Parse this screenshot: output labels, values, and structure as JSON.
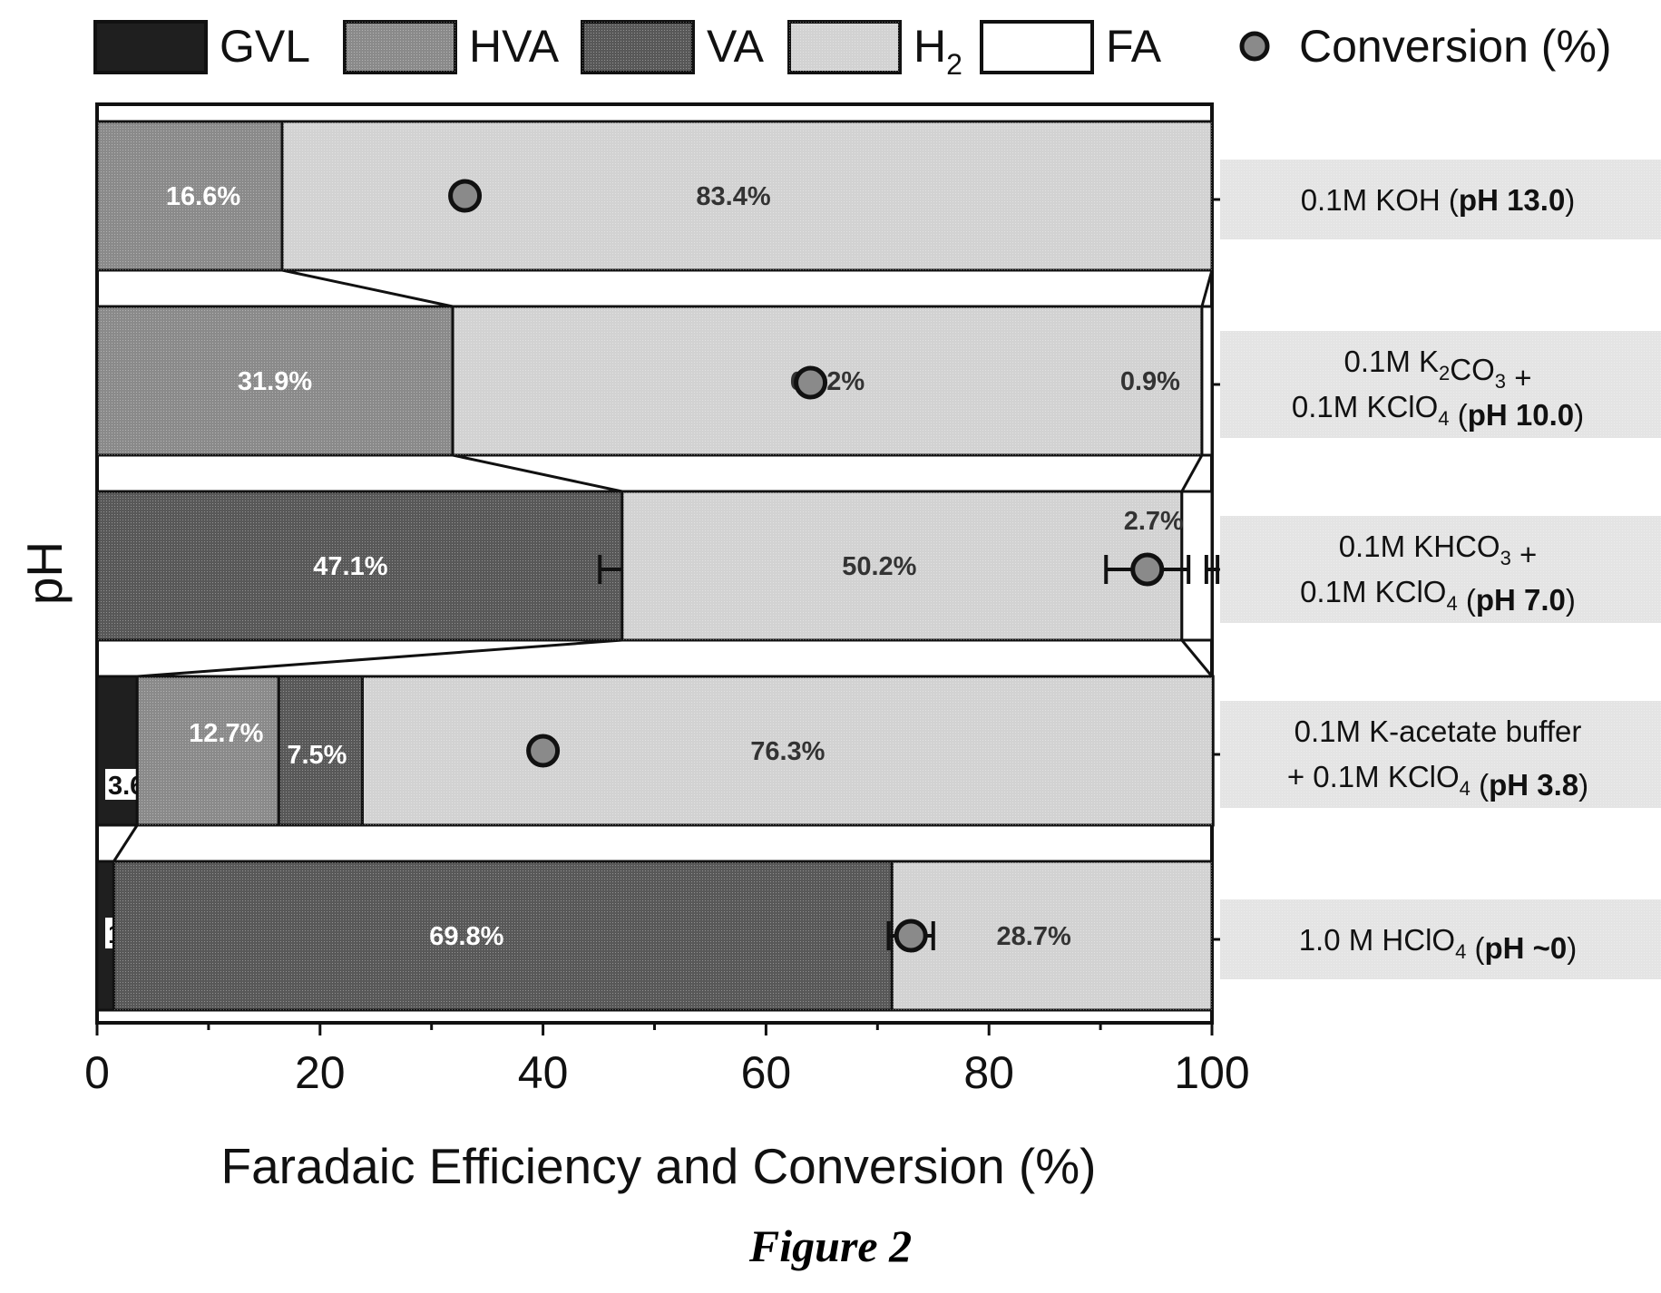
{
  "caption": "Figure 2",
  "chart_data": {
    "type": "bar",
    "orientation": "horizontal",
    "stacked": true,
    "title": "",
    "xlabel": "Faradaic Efficiency and Conversion (%)",
    "ylabel": "pH",
    "xlim": [
      0,
      100
    ],
    "xticks": [
      "0",
      "20",
      "40",
      "60",
      "80",
      "100"
    ],
    "legend_position": "top",
    "legend": [
      {
        "key": "GVL",
        "label": "GVL",
        "color": "#1f1f1f"
      },
      {
        "key": "HVA",
        "label": "HVA",
        "color": "#8a8a8a"
      },
      {
        "key": "VA",
        "label": "VA",
        "color": "#585858"
      },
      {
        "key": "H2",
        "label": "H",
        "sub": "2",
        "color": "#d2d2d2"
      },
      {
        "key": "FA",
        "label": "FA",
        "color": "#ffffff"
      },
      {
        "key": "conv",
        "label": "Conversion (%)",
        "color": "#8a8a8a",
        "marker": "circle"
      }
    ],
    "categories": [
      [
        {
          "t": "0.1M KOH ("
        },
        {
          "t": "pH 13.0",
          "b": true
        },
        {
          "t": ")"
        }
      ],
      [
        {
          "t": "0.1M K"
        },
        {
          "t": "2",
          "sub": true
        },
        {
          "t": "CO"
        },
        {
          "t": "3",
          "sub": true
        },
        {
          "t": " +"
        },
        {
          "br": true
        },
        {
          "t": "0.1M KClO"
        },
        {
          "t": "4",
          "sub": true
        },
        {
          "t": " ("
        },
        {
          "t": "pH 10.0",
          "b": true
        },
        {
          "t": ")"
        }
      ],
      [
        {
          "t": "0.1M KHCO"
        },
        {
          "t": "3",
          "sub": true
        },
        {
          "t": " +"
        },
        {
          "br": true
        },
        {
          "t": "0.1M KClO"
        },
        {
          "t": "4",
          "sub": true
        },
        {
          "t": " ("
        },
        {
          "t": "pH 7.0",
          "b": true
        },
        {
          "t": ")"
        }
      ],
      [
        {
          "t": "0.1M K-acetate buffer"
        },
        {
          "br": true
        },
        {
          "t": "+ 0.1M KClO"
        },
        {
          "t": "4",
          "sub": true
        },
        {
          "t": " ("
        },
        {
          "t": "pH 3.8",
          "b": true
        },
        {
          "t": ")"
        }
      ],
      [
        {
          "t": "1.0 M HClO"
        },
        {
          "t": "4",
          "sub": true
        },
        {
          "t": " ("
        },
        {
          "t": "pH ~0",
          "b": true
        },
        {
          "t": ")"
        }
      ]
    ],
    "bars": [
      {
        "segments": [
          {
            "key": "HVA",
            "value": 16.6,
            "label": "16.6%"
          },
          {
            "key": "H2",
            "value": 83.4,
            "label": "83.4%"
          }
        ],
        "conversion": 33.0
      },
      {
        "segments": [
          {
            "key": "HVA",
            "value": 31.9,
            "label": "31.9%"
          },
          {
            "key": "H2",
            "value": 67.2,
            "label": "67.2%"
          },
          {
            "key": "FA",
            "value": 0.9,
            "label": "0.9%"
          }
        ],
        "conversion": 64.0
      },
      {
        "segments": [
          {
            "key": "VA",
            "value": 47.1,
            "label": "47.1%",
            "err": 2.0
          },
          {
            "key": "H2",
            "value": 50.2,
            "label": "50.2%"
          },
          {
            "key": "FA",
            "value": 2.7,
            "label": "2.7%",
            "err": 0.5
          }
        ],
        "conversion": 94.2,
        "conversion_err": 3.7
      },
      {
        "segments": [
          {
            "key": "GVL",
            "value": 3.6,
            "label": "3.6%"
          },
          {
            "key": "HVA",
            "value": 12.7,
            "label": "12.7%"
          },
          {
            "key": "VA",
            "value": 7.5,
            "label": "7.5%"
          },
          {
            "key": "H2",
            "value": 76.3,
            "label": "76.3%"
          }
        ],
        "conversion": 40.0
      },
      {
        "segments": [
          {
            "key": "GVL",
            "value": 1.5,
            "label": "1.5%"
          },
          {
            "key": "VA",
            "value": 69.8,
            "label": "69.8%"
          },
          {
            "key": "H2",
            "value": 28.7,
            "label": "28.7%"
          }
        ],
        "conversion": 73.0,
        "conversion_err": 2.0
      }
    ]
  }
}
